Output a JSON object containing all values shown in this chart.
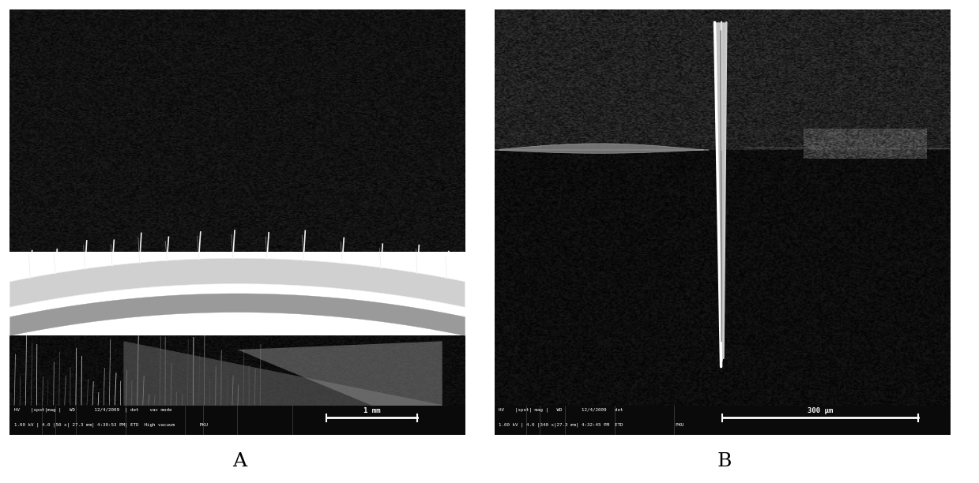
{
  "fig_width": 12.39,
  "fig_height": 6.12,
  "bg_color": "#ffffff",
  "panel_A_label": "A",
  "panel_B_label": "B",
  "scale_bar_A": "1 mm",
  "scale_bar_B": "300 μm"
}
